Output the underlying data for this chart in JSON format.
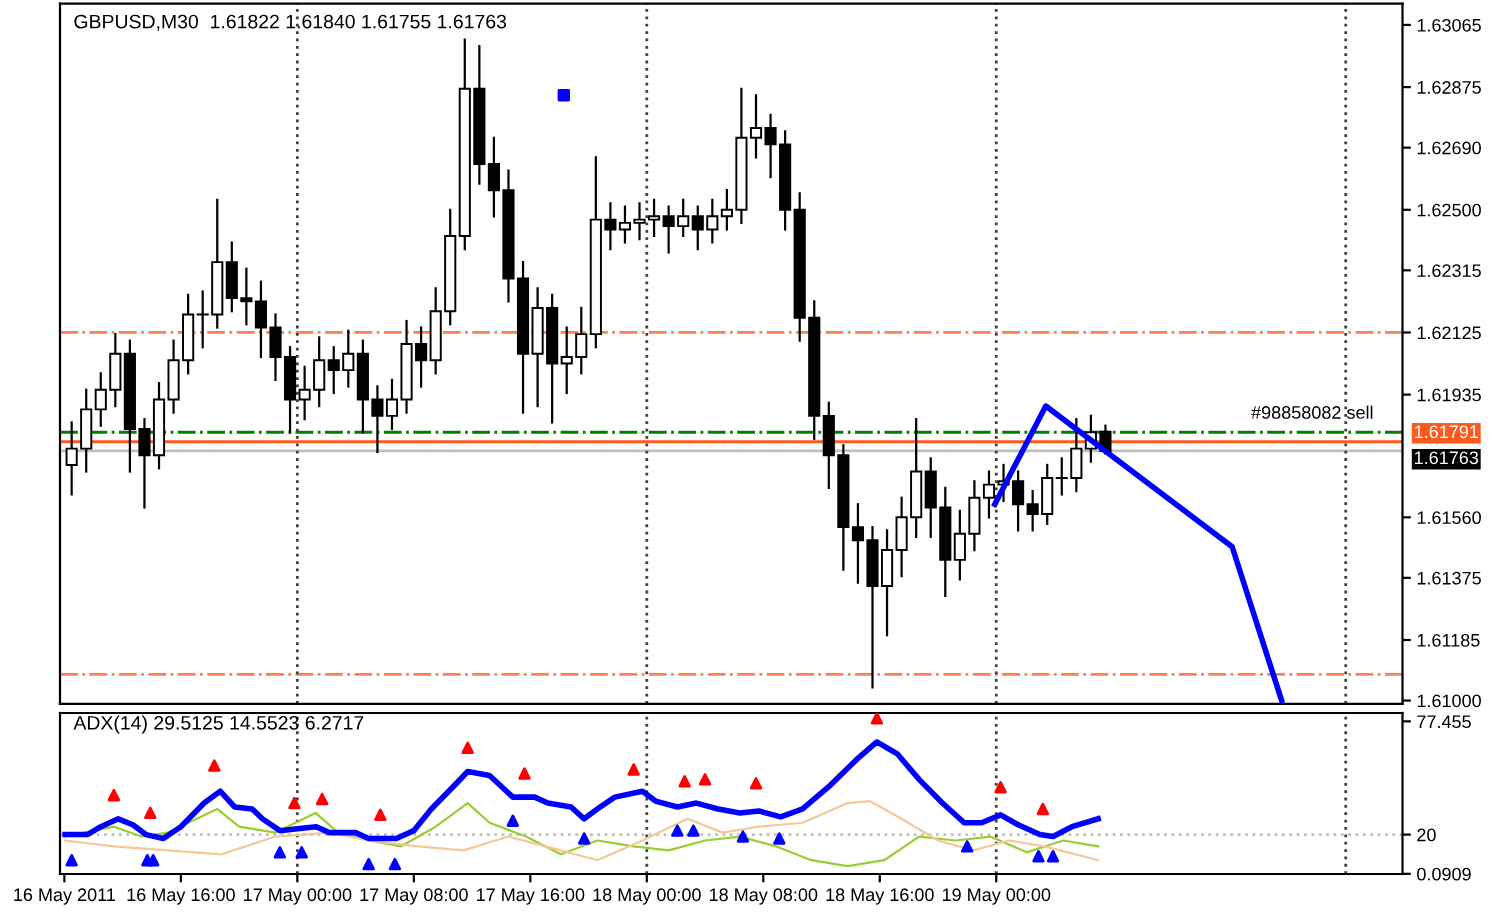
{
  "chart_data": [
    {
      "type": "candlestick",
      "title": "GBPUSD,M30  1.61822 1.61840 1.61755 1.61763",
      "x": [
        "2011-05-16T08:30",
        "2011-05-16T09:30",
        "2011-05-16T10:30",
        "2011-05-16T11:30",
        "2011-05-16T12:30",
        "2011-05-16T13:30",
        "2011-05-16T14:30",
        "2011-05-16T15:30",
        "2011-05-16T16:30",
        "2011-05-16T17:30",
        "2011-05-16T18:30",
        "2011-05-16T19:30",
        "2011-05-16T20:30",
        "2011-05-16T21:30",
        "2011-05-16T22:30",
        "2011-05-16T23:30",
        "2011-05-17T00:30",
        "2011-05-17T01:30",
        "2011-05-17T02:30",
        "2011-05-17T03:30",
        "2011-05-17T04:30",
        "2011-05-17T05:30",
        "2011-05-17T06:30",
        "2011-05-17T07:30",
        "2011-05-17T08:30",
        "2011-05-17T09:30",
        "2011-05-17T10:30",
        "2011-05-17T11:30",
        "2011-05-17T12:30",
        "2011-05-17T13:30",
        "2011-05-17T14:30",
        "2011-05-17T15:30",
        "2011-05-17T16:30",
        "2011-05-17T17:30",
        "2011-05-17T18:30",
        "2011-05-17T19:30",
        "2011-05-17T20:30",
        "2011-05-17T21:30",
        "2011-05-17T22:30",
        "2011-05-17T23:30",
        "2011-05-18T00:30",
        "2011-05-18T01:30",
        "2011-05-18T02:30",
        "2011-05-18T03:30",
        "2011-05-18T04:30",
        "2011-05-18T05:30",
        "2011-05-18T06:30",
        "2011-05-18T07:30",
        "2011-05-18T08:30",
        "2011-05-18T09:30",
        "2011-05-18T10:30",
        "2011-05-18T11:30",
        "2011-05-18T12:30",
        "2011-05-18T13:30",
        "2011-05-18T14:30",
        "2011-05-18T15:30",
        "2011-05-18T16:30",
        "2011-05-18T17:30",
        "2011-05-18T18:30",
        "2011-05-18T19:30",
        "2011-05-18T20:30",
        "2011-05-18T21:30",
        "2011-05-18T22:30",
        "2011-05-18T23:30",
        "2011-05-19T00:30",
        "2011-05-19T01:30",
        "2011-05-19T02:30",
        "2011-05-19T03:30",
        "2011-05-19T04:30",
        "2011-05-19T05:30",
        "2011-05-19T06:30",
        "2011-05-19T07:30"
      ],
      "ohlc": [
        [
          1.6172,
          1.6185,
          1.6163,
          1.6177
        ],
        [
          1.6177,
          1.6195,
          1.617,
          1.6189
        ],
        [
          1.6189,
          1.62,
          1.6184,
          1.6195
        ],
        [
          1.6195,
          1.6212,
          1.619,
          1.6206
        ],
        [
          1.6206,
          1.621,
          1.617,
          1.6183
        ],
        [
          1.6183,
          1.6186,
          1.6159,
          1.6175
        ],
        [
          1.6175,
          1.6197,
          1.6171,
          1.6192
        ],
        [
          1.6192,
          1.621,
          1.6188,
          1.6204
        ],
        [
          1.6204,
          1.6224,
          1.62,
          1.6218
        ],
        [
          1.6218,
          1.6225,
          1.6208,
          1.6218
        ],
        [
          1.6218,
          1.6253,
          1.6214,
          1.6234
        ],
        [
          1.6234,
          1.624,
          1.6219,
          1.6223
        ],
        [
          1.6223,
          1.6232,
          1.6215,
          1.6222
        ],
        [
          1.6222,
          1.6228,
          1.6205,
          1.6214
        ],
        [
          1.6214,
          1.6218,
          1.6198,
          1.6205
        ],
        [
          1.6205,
          1.6208,
          1.6182,
          1.6192
        ],
        [
          1.6192,
          1.6202,
          1.6186,
          1.6195
        ],
        [
          1.6195,
          1.6211,
          1.619,
          1.6204
        ],
        [
          1.6204,
          1.6208,
          1.6194,
          1.6201
        ],
        [
          1.6201,
          1.6213,
          1.6196,
          1.6206
        ],
        [
          1.6206,
          1.621,
          1.6182,
          1.6192
        ],
        [
          1.6192,
          1.6196,
          1.6176,
          1.6187
        ],
        [
          1.6187,
          1.6198,
          1.6183,
          1.6192
        ],
        [
          1.6192,
          1.6216,
          1.6188,
          1.6209
        ],
        [
          1.6209,
          1.6214,
          1.6196,
          1.6204
        ],
        [
          1.6204,
          1.6226,
          1.62,
          1.6219
        ],
        [
          1.6219,
          1.625,
          1.6215,
          1.6242
        ],
        [
          1.6242,
          1.6302,
          1.6238,
          1.6287
        ],
        [
          1.6287,
          1.63,
          1.6258,
          1.6264
        ],
        [
          1.6264,
          1.6272,
          1.6248,
          1.6256
        ],
        [
          1.6256,
          1.6262,
          1.6222,
          1.6229
        ],
        [
          1.6229,
          1.6234,
          1.6188,
          1.6206
        ],
        [
          1.6206,
          1.6226,
          1.619,
          1.622
        ],
        [
          1.622,
          1.6224,
          1.6185,
          1.6203
        ],
        [
          1.6203,
          1.6214,
          1.6194,
          1.6205
        ],
        [
          1.6205,
          1.622,
          1.62,
          1.6212
        ],
        [
          1.6212,
          1.6266,
          1.6208,
          1.6247
        ],
        [
          1.6247,
          1.6252,
          1.6238,
          1.6244
        ],
        [
          1.6244,
          1.6251,
          1.624,
          1.6246
        ],
        [
          1.6246,
          1.6252,
          1.6241,
          1.6247
        ],
        [
          1.6247,
          1.6253,
          1.6242,
          1.6248
        ],
        [
          1.6248,
          1.6251,
          1.6237,
          1.6245
        ],
        [
          1.6245,
          1.6253,
          1.6242,
          1.6248
        ],
        [
          1.6248,
          1.6251,
          1.6238,
          1.6244
        ],
        [
          1.6244,
          1.6253,
          1.624,
          1.6248
        ],
        [
          1.6248,
          1.6256,
          1.6244,
          1.625
        ],
        [
          1.625,
          1.6287,
          1.6246,
          1.6272
        ],
        [
          1.6272,
          1.6285,
          1.6266,
          1.6275
        ],
        [
          1.6275,
          1.6279,
          1.626,
          1.627
        ],
        [
          1.627,
          1.6274,
          1.6244,
          1.625
        ],
        [
          1.625,
          1.6255,
          1.621,
          1.6217
        ],
        [
          1.6217,
          1.6222,
          1.618,
          1.6187
        ],
        [
          1.6187,
          1.6191,
          1.6165,
          1.6175
        ],
        [
          1.6175,
          1.6178,
          1.614,
          1.6153
        ],
        [
          1.6153,
          1.616,
          1.6136,
          1.6149
        ],
        [
          1.6149,
          1.6153,
          1.6104,
          1.6135
        ],
        [
          1.6135,
          1.6152,
          1.612,
          1.6146
        ],
        [
          1.6146,
          1.6162,
          1.6138,
          1.6156
        ],
        [
          1.6156,
          1.6186,
          1.615,
          1.617
        ],
        [
          1.617,
          1.6174,
          1.615,
          1.6159
        ],
        [
          1.6159,
          1.6165,
          1.6132,
          1.6143
        ],
        [
          1.6143,
          1.6158,
          1.6137,
          1.6151
        ],
        [
          1.6151,
          1.6167,
          1.6146,
          1.6162
        ],
        [
          1.6162,
          1.617,
          1.6156,
          1.6166
        ],
        [
          1.6166,
          1.6172,
          1.6161,
          1.6167
        ],
        [
          1.6167,
          1.617,
          1.6152,
          1.616
        ],
        [
          1.616,
          1.6164,
          1.6152,
          1.6157
        ],
        [
          1.6157,
          1.6172,
          1.6154,
          1.6168
        ],
        [
          1.6168,
          1.6174,
          1.6163,
          1.6168
        ],
        [
          1.6168,
          1.6186,
          1.6164,
          1.6177
        ],
        [
          1.6177,
          1.6187,
          1.6173,
          1.6182
        ],
        [
          1.61822,
          1.6184,
          1.61755,
          1.61763
        ]
      ],
      "series": [
        {
          "type": "line",
          "color": "#0000ff",
          "x": [
            "2011-05-18T23:54",
            "2011-05-19T03:24",
            "2011-05-19T16:12",
            "2011-05-19T19:36"
          ],
          "values": [
            1.616,
            1.619,
            1.6147,
            1.61
          ]
        },
        {
          "type": "scatter",
          "color": "#0000ff",
          "marker": "square",
          "x": [
            "2011-05-17T18:18"
          ],
          "values": [
            1.6285
          ]
        }
      ],
      "ref_lines": [
        {
          "axis": "y",
          "value": 1.62125,
          "color": "#ff7f50",
          "line_style": "dashdot"
        },
        {
          "axis": "y",
          "value": 1.6108,
          "color": "#ff7f50",
          "line_style": "dashdot"
        },
        {
          "axis": "y",
          "value": 1.6182,
          "color": "#008000",
          "line_style": "dashdot"
        },
        {
          "axis": "y",
          "value": 1.61791,
          "color": "#ff5a1e",
          "line_style": "solid",
          "label": "1.61791"
        },
        {
          "axis": "y",
          "value": 1.61763,
          "color": "#c0c0c0",
          "line_style": "solid",
          "label": "1.61763"
        },
        {
          "axis": "x",
          "value": "2011-05-17T00:00",
          "color": "#404040",
          "line_style": "dotted"
        },
        {
          "axis": "x",
          "value": "2011-05-18T00:00",
          "color": "#404040",
          "line_style": "dotted"
        },
        {
          "axis": "x",
          "value": "2011-05-19T00:00",
          "color": "#404040",
          "line_style": "dotted"
        },
        {
          "axis": "x",
          "value": "2011-05-20T00:00",
          "color": "#404040",
          "line_style": "dotted"
        }
      ],
      "annotations": [
        {
          "text": "#98858082 sell",
          "x": "2011-05-19T17:30",
          "y": 1.6185
        }
      ],
      "xlim": [
        "2011-05-16T07:42",
        "2011-05-20T03:54"
      ],
      "ylim": [
        1.6099,
        1.6313
      ],
      "yticks": [
        {
          "value": 1.61,
          "label": "1.61000"
        },
        1.61185,
        1.61375,
        {
          "value": 1.6156,
          "label": "1.61560"
        },
        1.61935,
        1.62125,
        1.62315,
        {
          "value": 1.625,
          "label": "1.62500"
        },
        {
          "value": 1.6269,
          "label": "1.62690"
        },
        1.62875,
        1.63065
      ],
      "tick_labels": "y",
      "grid": false,
      "legend": false
    },
    {
      "type": "line",
      "title": "ADX(14) 29.5125 14.5523 6.2717",
      "series": [
        {
          "type": "line",
          "color": "#9acd32",
          "x": [
            "2011-05-16T08:03",
            "2011-05-16T11:24",
            "2011-05-16T13:18",
            "2011-05-16T15:06",
            "2011-05-16T18:30",
            "2011-05-16T20:00",
            "2011-05-16T22:30",
            "2011-05-17T01:15",
            "2011-05-17T02:48",
            "2011-05-17T04:54",
            "2011-05-17T07:06",
            "2011-05-17T09:30",
            "2011-05-17T11:42",
            "2011-05-17T13:12",
            "2011-05-17T15:42",
            "2011-05-17T18:06",
            "2011-05-17T20:36",
            "2011-05-17T23:06",
            "2011-05-18T01:30",
            "2011-05-18T04:00",
            "2011-05-18T06:24",
            "2011-05-18T08:54",
            "2011-05-18T11:18",
            "2011-05-18T13:48",
            "2011-05-18T16:18",
            "2011-05-18T18:42",
            "2011-05-18T21:12",
            "2011-05-18T23:36",
            "2011-05-19T02:06",
            "2011-05-19T04:36",
            "2011-05-19T07:00"
          ],
          "values": [
            19,
            24,
            19,
            21,
            33,
            24,
            21,
            31,
            21,
            17,
            14,
            24,
            36,
            26,
            19,
            10,
            17,
            14,
            12,
            17,
            19,
            14,
            7,
            4,
            7,
            19,
            17,
            19,
            11,
            17,
            14
          ]
        },
        {
          "type": "line",
          "color": "#f5c89a",
          "x": [
            "2011-05-16T08:03",
            "2011-05-16T11:24",
            "2011-05-16T15:06",
            "2011-05-16T18:48",
            "2011-05-16T22:30",
            "2011-05-17T02:12",
            "2011-05-17T04:54",
            "2011-05-17T08:18",
            "2011-05-17T11:24",
            "2011-05-17T14:30",
            "2011-05-17T18:06",
            "2011-05-17T20:36",
            "2011-05-17T23:42",
            "2011-05-18T02:48",
            "2011-05-18T05:12",
            "2011-05-18T07:42",
            "2011-05-18T10:42",
            "2011-05-18T13:48",
            "2011-05-18T15:18",
            "2011-05-18T17:30",
            "2011-05-18T20:00",
            "2011-05-18T22:24",
            "2011-05-19T00:54",
            "2011-05-19T03:18",
            "2011-05-19T07:00"
          ],
          "values": [
            17,
            14,
            12,
            10,
            19,
            21,
            17,
            14,
            12,
            19,
            12,
            7,
            17,
            28,
            21,
            24,
            26,
            36,
            37,
            28,
            17,
            12,
            17,
            14,
            7
          ]
        },
        {
          "type": "line",
          "color": "#0000ff",
          "x": [
            "2011-05-16T08:03",
            "2011-05-16T09:35",
            "2011-05-16T10:30",
            "2011-05-16T11:42",
            "2011-05-16T12:42",
            "2011-05-16T13:36",
            "2011-05-16T14:48",
            "2011-05-16T16:00",
            "2011-05-16T17:36",
            "2011-05-16T18:42",
            "2011-05-16T19:42",
            "2011-05-16T20:54",
            "2011-05-16T21:36",
            "2011-05-16T22:48",
            "2011-05-17T00:00",
            "2011-05-17T01:18",
            "2011-05-17T02:12",
            "2011-05-17T04:00",
            "2011-05-17T04:54",
            "2011-05-17T06:48",
            "2011-05-17T08:00",
            "2011-05-17T09:12",
            "2011-05-17T10:48",
            "2011-05-17T11:42",
            "2011-05-17T13:12",
            "2011-05-17T14:48",
            "2011-05-17T16:18",
            "2011-05-17T17:12",
            "2011-05-17T18:48",
            "2011-05-17T19:42",
            "2011-05-17T20:36",
            "2011-05-17T21:48",
            "2011-05-17T23:42",
            "2011-05-18T00:36",
            "2011-05-18T02:06",
            "2011-05-18T03:24",
            "2011-05-18T04:54",
            "2011-05-18T06:24",
            "2011-05-18T07:42",
            "2011-05-18T09:12",
            "2011-05-18T10:42",
            "2011-05-18T12:36",
            "2011-05-18T14:24",
            "2011-05-18T15:48",
            "2011-05-18T17:12",
            "2011-05-18T18:42",
            "2011-05-18T20:18",
            "2011-05-18T21:48",
            "2011-05-18T23:00",
            "2011-05-19T00:18",
            "2011-05-19T01:30",
            "2011-05-19T03:00",
            "2011-05-19T03:54",
            "2011-05-19T05:12",
            "2011-05-19T07:00"
          ],
          "values": [
            20,
            20,
            24,
            28,
            25,
            20,
            18,
            24,
            36,
            42,
            34,
            33,
            28,
            22,
            23,
            24,
            21,
            21,
            18,
            18,
            22,
            33,
            45,
            52,
            50,
            39,
            39,
            36,
            34,
            28,
            33,
            39,
            42,
            37,
            34,
            36,
            33,
            31,
            32,
            29,
            33,
            45,
            58,
            67,
            61,
            48,
            36,
            26,
            26,
            30,
            25,
            20,
            19,
            24,
            28
          ]
        },
        {
          "type": "scatter",
          "color": "#ff0000",
          "marker": "triangle",
          "x": [
            "2011-05-16T11:24",
            "2011-05-16T13:54",
            "2011-05-16T18:18",
            "2011-05-16T23:48",
            "2011-05-17T01:42",
            "2011-05-17T05:42",
            "2011-05-17T11:42",
            "2011-05-17T15:36",
            "2011-05-17T23:06",
            "2011-05-18T02:36",
            "2011-05-18T04:00",
            "2011-05-18T07:30",
            "2011-05-18T15:48",
            "2011-05-19T00:18",
            "2011-05-19T03:12"
          ],
          "values": [
            40,
            31,
            55,
            36,
            38,
            30,
            64,
            51,
            53,
            47,
            48,
            46,
            79,
            44,
            33
          ]
        },
        {
          "type": "scatter",
          "color": "#0000ff",
          "marker": "triangle",
          "x": [
            "2011-05-16T08:30",
            "2011-05-16T13:42",
            "2011-05-16T14:06",
            "2011-05-16T22:48",
            "2011-05-17T00:18",
            "2011-05-17T04:54",
            "2011-05-17T06:42",
            "2011-05-17T14:48",
            "2011-05-17T19:42",
            "2011-05-18T02:06",
            "2011-05-18T03:12",
            "2011-05-18T06:36",
            "2011-05-18T09:06",
            "2011-05-18T22:00",
            "2011-05-19T02:54",
            "2011-05-19T03:54"
          ],
          "values": [
            7,
            7,
            7,
            11,
            11,
            5,
            5,
            27,
            18,
            22,
            22,
            19,
            18,
            14,
            9,
            9
          ]
        }
      ],
      "ref_lines": [
        {
          "axis": "y",
          "value": 20,
          "color": "#c0c0c0",
          "line_style": "dotted"
        },
        {
          "axis": "x",
          "value": "2011-05-17T00:00",
          "color": "#404040",
          "line_style": "dotted"
        },
        {
          "axis": "x",
          "value": "2011-05-18T00:00",
          "color": "#404040",
          "line_style": "dotted"
        },
        {
          "axis": "x",
          "value": "2011-05-19T00:00",
          "color": "#404040",
          "line_style": "dotted"
        },
        {
          "axis": "x",
          "value": "2011-05-20T00:00",
          "color": "#404040",
          "line_style": "dotted"
        }
      ],
      "xlim": [
        "2011-05-16T07:42",
        "2011-05-20T03:54"
      ],
      "ylim": [
        0,
        81.7
      ],
      "xticks": [
        {
          "value": "2011-05-16T08:00",
          "label": "16 May 2011"
        },
        {
          "value": "2011-05-16T16:00",
          "label": "16 May 16:00"
        },
        {
          "value": "2011-05-17T00:00",
          "label": "17 May 00:00"
        },
        {
          "value": "2011-05-17T08:00",
          "label": "17 May 08:00"
        },
        {
          "value": "2011-05-17T16:00",
          "label": "17 May 16:00"
        },
        {
          "value": "2011-05-18T00:00",
          "label": "18 May 00:00"
        },
        {
          "value": "2011-05-18T08:00",
          "label": "18 May 08:00"
        },
        {
          "value": "2011-05-18T16:00",
          "label": "18 May 16:00"
        },
        {
          "value": "2011-05-19T00:00",
          "label": "19 May 00:00"
        }
      ],
      "yticks": [
        0.0909,
        20,
        77.455
      ],
      "grid": false,
      "legend": false
    }
  ]
}
